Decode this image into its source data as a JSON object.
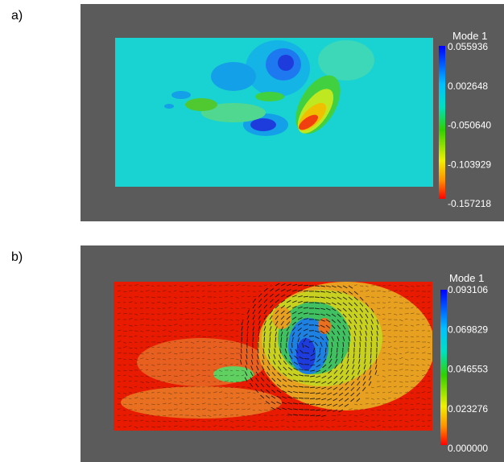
{
  "panels": [
    {
      "label": "a)",
      "colorbar": {
        "title": "Mode 1",
        "ticks": [
          "0.055936",
          "0.002648",
          "-0.050640",
          "-0.103929",
          "-0.157218"
        ]
      }
    },
    {
      "label": "b)",
      "colorbar": {
        "title": "Mode 1",
        "ticks": [
          "0.093106",
          "0.069829",
          "0.046553",
          "0.023276",
          "0.000000"
        ]
      }
    }
  ]
}
